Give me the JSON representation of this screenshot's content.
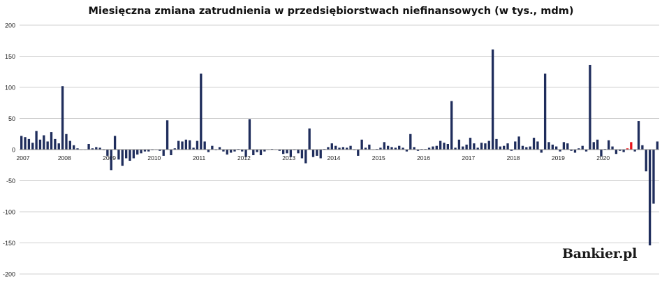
{
  "chart_data": {
    "type": "bar",
    "title": "Miesięczna zmiana zatrudnienia w przedsiębiorstwach niefinansowych (w tys., mdm)",
    "ylim": [
      -200,
      200
    ],
    "yticks": [
      200,
      150,
      100,
      50,
      0,
      -50,
      -100,
      -150,
      -200
    ],
    "xlabels": [
      "2007",
      "2008",
      "2009",
      "2010",
      "2011",
      "2012",
      "2013",
      "2014",
      "2015",
      "2016",
      "2017",
      "2018",
      "2019",
      "2020"
    ],
    "grid": true,
    "colors": {
      "normal": "#1f2d5c",
      "highlight": "#e8141b"
    },
    "values": [
      22,
      20,
      17,
      11,
      30,
      16,
      23,
      13,
      28,
      17,
      10,
      102,
      25,
      14,
      7,
      2,
      0,
      0,
      9,
      2,
      4,
      3,
      -1,
      -10,
      -33,
      22,
      -16,
      -26,
      -14,
      -18,
      -14,
      -8,
      -6,
      -3,
      -3,
      -1,
      0,
      -2,
      -10,
      47,
      -9,
      2,
      14,
      13,
      16,
      15,
      3,
      14,
      122,
      13,
      -4,
      6,
      -1,
      4,
      -3,
      -8,
      -5,
      -3,
      1,
      -3,
      -12,
      49,
      -9,
      -4,
      -9,
      -3,
      0,
      1,
      0,
      -2,
      -7,
      -6,
      -12,
      -1,
      -6,
      -14,
      -22,
      34,
      -12,
      -10,
      -14,
      1,
      4,
      10,
      6,
      3,
      4,
      3,
      6,
      -1,
      -10,
      16,
      3,
      8,
      0,
      1,
      3,
      12,
      6,
      4,
      3,
      6,
      3,
      -3,
      25,
      4,
      -2,
      1,
      1,
      3,
      5,
      6,
      14,
      11,
      9,
      78,
      3,
      16,
      5,
      8,
      19,
      10,
      3,
      11,
      10,
      14,
      161,
      17,
      5,
      6,
      10,
      -2,
      13,
      21,
      6,
      4,
      5,
      19,
      13,
      -5,
      122,
      12,
      8,
      5,
      -3,
      12,
      10,
      -2,
      -5,
      2,
      6,
      -3,
      136,
      12,
      16,
      -11,
      1,
      15,
      5,
      -7,
      -2,
      -4,
      2,
      12,
      -3,
      46,
      7,
      -35,
      -154,
      -87,
      13
    ],
    "highlighted_indices": [
      162,
      163
    ]
  },
  "logo": {
    "text": "Bankier.pl"
  }
}
